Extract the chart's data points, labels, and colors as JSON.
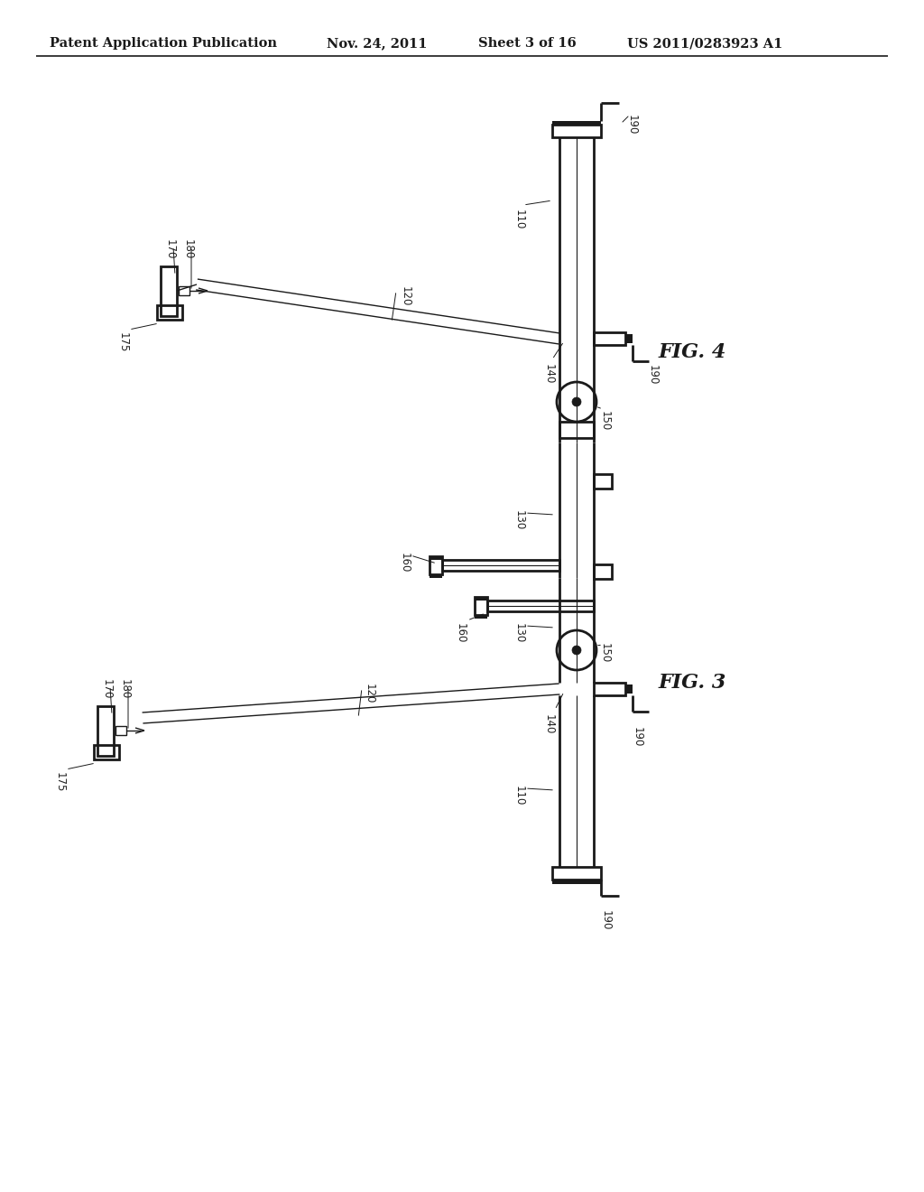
{
  "bg_color": "#ffffff",
  "header_text": "Patent Application Publication",
  "header_date": "Nov. 24, 2011",
  "header_sheet": "Sheet 3 of 16",
  "header_patent": "US 2011/0283923 A1",
  "fig3_label": "FIG. 3",
  "fig4_label": "FIG. 4",
  "line_color": "#1a1a1a",
  "label_color": "#222222",
  "label_fontsize": 8.5,
  "header_fontsize": 10.5
}
